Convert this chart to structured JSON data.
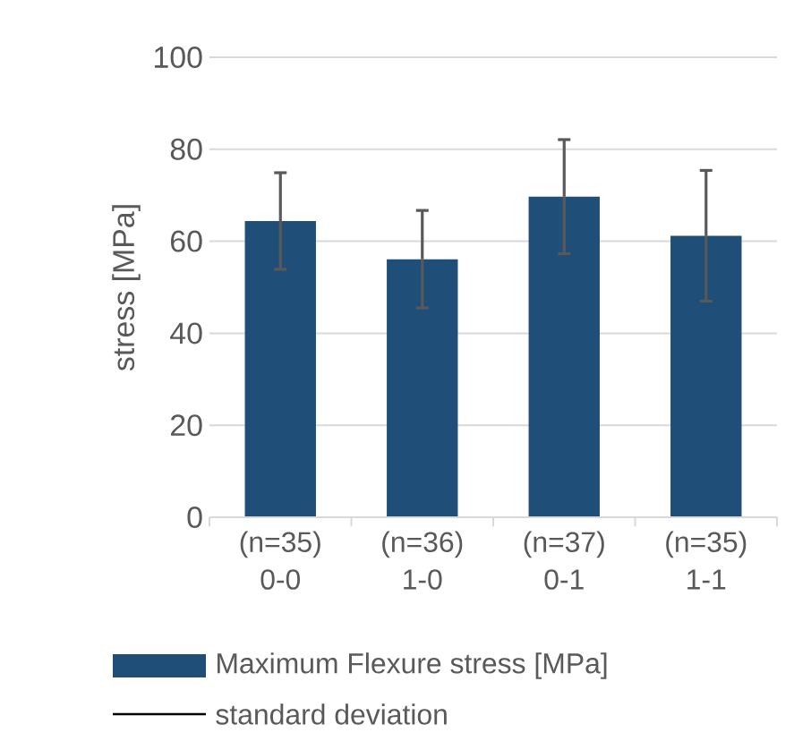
{
  "chart_data": {
    "type": "bar",
    "ylabel": "stress [MPa]",
    "categories": [
      "(n=35) 0-0",
      "(n=36) 1-0",
      "(n=37) 0-1",
      "(n=35) 1-1"
    ],
    "series": [
      {
        "name": "Maximum Flexure stress [MPa]",
        "color": "#1f4e79",
        "values": [
          64.4,
          56.1,
          69.7,
          61.2
        ],
        "errors": [
          10.5,
          10.6,
          12.4,
          14.2
        ]
      }
    ],
    "annotations": [
      "standard deviation"
    ],
    "ylim": [
      0,
      100
    ],
    "yticks": [
      0,
      20,
      40,
      60,
      80,
      100
    ],
    "grid": "y",
    "legend": "bottom"
  }
}
